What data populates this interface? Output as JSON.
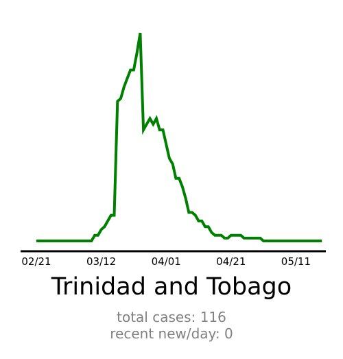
{
  "chart_data": {
    "type": "line",
    "title": "Trinidad and Tobago",
    "xlabel": "",
    "ylabel": "",
    "x_tick_labels": [
      "02/21",
      "03/12",
      "04/01",
      "04/21",
      "05/11"
    ],
    "x_tick_days": [
      0,
      20,
      40,
      60,
      80
    ],
    "ylim": [
      0,
      7.5
    ],
    "grid": false,
    "series": [
      {
        "color": "#008000",
        "days": [
          0,
          1,
          2,
          3,
          4,
          5,
          6,
          7,
          8,
          9,
          10,
          11,
          12,
          13,
          14,
          15,
          16,
          17,
          18,
          19,
          20,
          21,
          22,
          23,
          24,
          25,
          26,
          27,
          28,
          29,
          30,
          31,
          32,
          33,
          34,
          35,
          36,
          37,
          38,
          39,
          40,
          41,
          42,
          43,
          44,
          45,
          46,
          47,
          48,
          49,
          50,
          51,
          52,
          53,
          54,
          55,
          56,
          57,
          58,
          59,
          60,
          61,
          62,
          63,
          64,
          65,
          66,
          67,
          68,
          69,
          70,
          71,
          72,
          73,
          74,
          75,
          76,
          77,
          78,
          79,
          80,
          81,
          82,
          83,
          84,
          85,
          86,
          87,
          88
        ],
        "values": [
          0,
          0,
          0,
          0,
          0,
          0,
          0,
          0,
          0,
          0,
          0,
          0,
          0,
          0,
          0,
          0,
          0,
          0,
          0.2,
          0.2,
          0.4,
          0.5,
          0.7,
          0.9,
          0.9,
          4.9,
          5.0,
          5.4,
          5.7,
          6.0,
          6.0,
          6.6,
          7.3,
          3.9,
          4.1,
          4.3,
          4.1,
          4.3,
          3.9,
          3.9,
          3.4,
          2.9,
          2.7,
          2.2,
          2.2,
          1.9,
          1.5,
          1.0,
          1.0,
          0.9,
          0.7,
          0.7,
          0.5,
          0.5,
          0.3,
          0.2,
          0.2,
          0.2,
          0.1,
          0.1,
          0.2,
          0.2,
          0.2,
          0.2,
          0.1,
          0.1,
          0.1,
          0.1,
          0.1,
          0.1,
          0.0,
          0.0,
          0.0,
          0.0,
          0.0,
          0.0,
          0.0,
          0.0,
          0.0,
          0.0,
          0.0,
          0.0,
          0.0,
          0.0,
          0.0,
          0.0,
          0.0,
          0.0,
          0.0
        ]
      }
    ]
  },
  "stats": {
    "total": "total cases: 116",
    "recent": "recent new/day: 0"
  }
}
